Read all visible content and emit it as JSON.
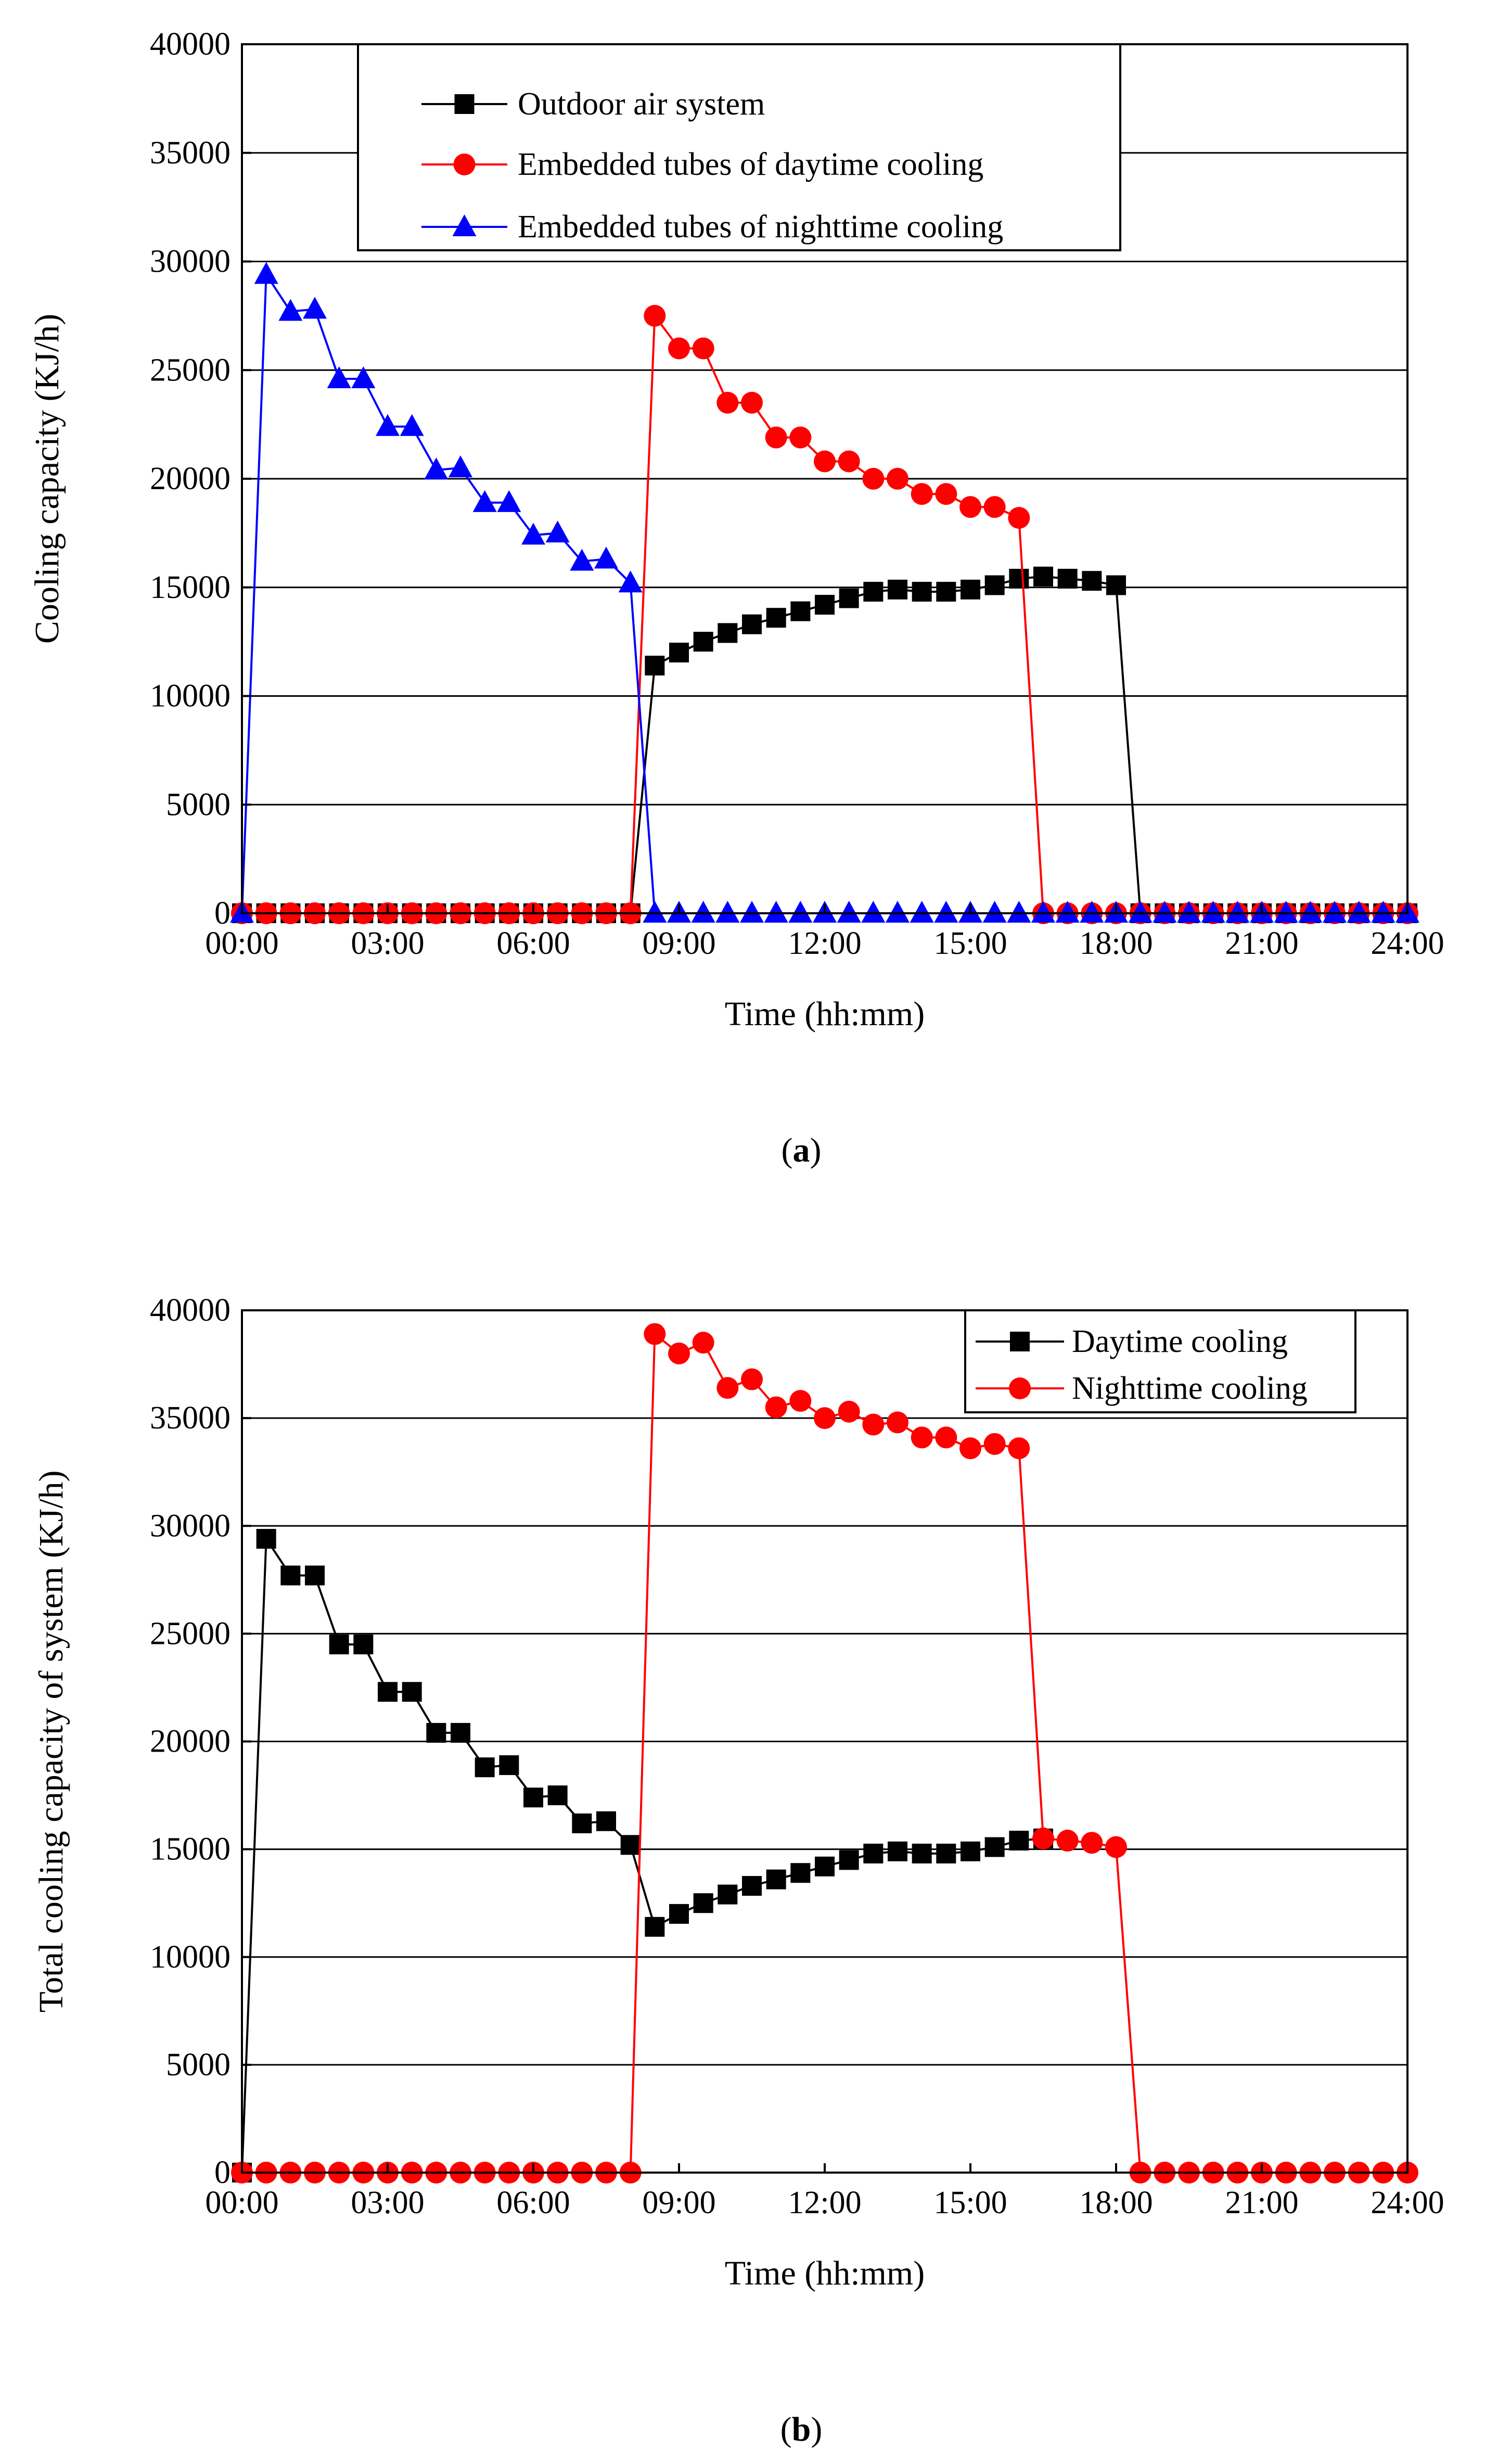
{
  "figures": [
    {
      "caption_id": "a",
      "legend_box": true
    },
    {
      "caption_id": "b",
      "legend_box": true
    }
  ],
  "chart_data": [
    {
      "type": "line",
      "title": "",
      "xlabel": "Time (hh:mm)",
      "ylabel": "Cooling capacity (KJ/h)",
      "x_tick_labels": [
        "00:00",
        "03:00",
        "06:00",
        "09:00",
        "12:00",
        "15:00",
        "18:00",
        "21:00",
        "24:00"
      ],
      "x_tick_values": [
        0,
        3,
        6,
        9,
        12,
        15,
        18,
        21,
        24
      ],
      "xlim": [
        0,
        24
      ],
      "ylim": [
        0,
        40000
      ],
      "y_ticks": [
        0,
        5000,
        10000,
        15000,
        20000,
        25000,
        30000,
        35000,
        40000
      ],
      "y_tick_labels": [
        "0",
        "5000",
        "10000",
        "15000",
        "20000",
        "25000",
        "30000",
        "35000",
        "40000"
      ],
      "grid": "horizontal",
      "legend_position": "top-center",
      "series": [
        {
          "name": "Outdoor air system",
          "color": "#000000",
          "marker": "square",
          "x": [
            0,
            0.5,
            1,
            1.5,
            2,
            2.5,
            3,
            3.5,
            4,
            4.5,
            5,
            5.5,
            6,
            6.5,
            7,
            7.5,
            8,
            8.5,
            9,
            9.5,
            10,
            10.5,
            11,
            11.5,
            12,
            12.5,
            13,
            13.5,
            14,
            14.5,
            15,
            15.5,
            16,
            16.5,
            17,
            17.5,
            18,
            18.5,
            19,
            19.5,
            20,
            20.5,
            21,
            21.5,
            22,
            22.5,
            23,
            23.5,
            24
          ],
          "values": [
            0,
            0,
            0,
            0,
            0,
            0,
            0,
            0,
            0,
            0,
            0,
            0,
            0,
            0,
            0,
            0,
            0,
            11400,
            12000,
            12500,
            12900,
            13300,
            13600,
            13900,
            14200,
            14500,
            14800,
            14900,
            14800,
            14800,
            14900,
            15100,
            15400,
            15500,
            15400,
            15300,
            15100,
            0,
            0,
            0,
            0,
            0,
            0,
            0,
            0,
            0,
            0,
            0,
            0
          ]
        },
        {
          "name": "Embedded tubes of daytime cooling",
          "color": "#ff0000",
          "marker": "circle",
          "x": [
            0,
            0.5,
            1,
            1.5,
            2,
            2.5,
            3,
            3.5,
            4,
            4.5,
            5,
            5.5,
            6,
            6.5,
            7,
            7.5,
            8,
            8.5,
            9,
            9.5,
            10,
            10.5,
            11,
            11.5,
            12,
            12.5,
            13,
            13.5,
            14,
            14.5,
            15,
            15.5,
            16,
            16.5,
            17,
            17.5,
            18,
            18.5,
            19,
            19.5,
            20,
            20.5,
            21,
            21.5,
            22,
            22.5,
            23,
            23.5,
            24
          ],
          "values": [
            0,
            0,
            0,
            0,
            0,
            0,
            0,
            0,
            0,
            0,
            0,
            0,
            0,
            0,
            0,
            0,
            0,
            27500,
            26000,
            26000,
            23500,
            23500,
            21900,
            21900,
            20800,
            20800,
            20000,
            20000,
            19300,
            19300,
            18700,
            18700,
            18200,
            0,
            0,
            0,
            0,
            0,
            0,
            0,
            0,
            0,
            0,
            0,
            0,
            0,
            0,
            0,
            0
          ]
        },
        {
          "name": "Embedded tubes of nighttime cooling",
          "color": "#0000ff",
          "marker": "triangle",
          "x": [
            0,
            0.5,
            1,
            1.5,
            2,
            2.5,
            3,
            3.5,
            4,
            4.5,
            5,
            5.5,
            6,
            6.5,
            7,
            7.5,
            8,
            8.5,
            9,
            9.5,
            10,
            10.5,
            11,
            11.5,
            12,
            12.5,
            13,
            13.5,
            14,
            14.5,
            15,
            15.5,
            16,
            16.5,
            17,
            17.5,
            18,
            18.5,
            19,
            19.5,
            20,
            20.5,
            21,
            21.5,
            22,
            22.5,
            23,
            23.5,
            24
          ],
          "values": [
            0,
            29400,
            27700,
            27800,
            24600,
            24600,
            22400,
            22400,
            20400,
            20500,
            18900,
            18900,
            17400,
            17500,
            16200,
            16300,
            15200,
            0,
            0,
            0,
            0,
            0,
            0,
            0,
            0,
            0,
            0,
            0,
            0,
            0,
            0,
            0,
            0,
            0,
            0,
            0,
            0,
            0,
            0,
            0,
            0,
            0,
            0,
            0,
            0,
            0,
            0,
            0,
            0
          ]
        }
      ]
    },
    {
      "type": "line",
      "title": "",
      "xlabel": "Time (hh:mm)",
      "ylabel": "Total cooling capacity of system (KJ/h)",
      "x_tick_labels": [
        "00:00",
        "03:00",
        "06:00",
        "09:00",
        "12:00",
        "15:00",
        "18:00",
        "21:00",
        "24:00"
      ],
      "x_tick_values": [
        0,
        3,
        6,
        9,
        12,
        15,
        18,
        21,
        24
      ],
      "xlim": [
        0,
        24
      ],
      "ylim": [
        0,
        40000
      ],
      "y_ticks": [
        0,
        5000,
        10000,
        15000,
        20000,
        25000,
        30000,
        35000,
        40000
      ],
      "y_tick_labels": [
        "0",
        "5000",
        "10000",
        "15000",
        "20000",
        "25000",
        "30000",
        "35000",
        "40000"
      ],
      "grid": "horizontal",
      "legend_position": "top-right",
      "series": [
        {
          "name": "Daytime cooling",
          "color": "#000000",
          "marker": "square",
          "x": [
            0,
            0.5,
            1,
            1.5,
            2,
            2.5,
            3,
            3.5,
            4,
            4.5,
            5,
            5.5,
            6,
            6.5,
            7,
            7.5,
            8,
            8.5,
            9,
            9.5,
            10,
            10.5,
            11,
            11.5,
            12,
            12.5,
            13,
            13.5,
            14,
            14.5,
            15,
            15.5,
            16,
            16.5
          ],
          "values": [
            0,
            29400,
            27700,
            27700,
            24500,
            24500,
            22300,
            22300,
            20400,
            20400,
            18800,
            18900,
            17400,
            17500,
            16200,
            16300,
            15200,
            11400,
            12000,
            12500,
            12900,
            13300,
            13600,
            13900,
            14200,
            14500,
            14800,
            14900,
            14800,
            14800,
            14900,
            15100,
            15400,
            15500
          ]
        },
        {
          "name": "Nighttime cooling",
          "color": "#ff0000",
          "marker": "circle",
          "x": [
            0,
            0.5,
            1,
            1.5,
            2,
            2.5,
            3,
            3.5,
            4,
            4.5,
            5,
            5.5,
            6,
            6.5,
            7,
            7.5,
            8,
            8.5,
            9,
            9.5,
            10,
            10.5,
            11,
            11.5,
            12,
            12.5,
            13,
            13.5,
            14,
            14.5,
            15,
            15.5,
            16,
            16.5,
            17,
            17.5,
            18,
            18.5,
            19,
            19.5,
            20,
            20.5,
            21,
            21.5,
            22,
            22.5,
            23,
            23.5,
            24
          ],
          "values": [
            0,
            0,
            0,
            0,
            0,
            0,
            0,
            0,
            0,
            0,
            0,
            0,
            0,
            0,
            0,
            0,
            0,
            38900,
            38000,
            38500,
            36400,
            36800,
            35500,
            35800,
            35000,
            35300,
            34700,
            34800,
            34100,
            34100,
            33600,
            33800,
            33600,
            15500,
            15400,
            15300,
            15100,
            0,
            0,
            0,
            0,
            0,
            0,
            0,
            0,
            0,
            0,
            0,
            0
          ]
        }
      ]
    }
  ]
}
